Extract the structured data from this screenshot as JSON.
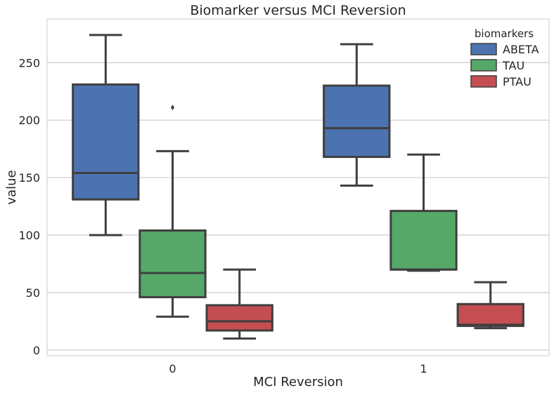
{
  "chart_data": {
    "type": "box",
    "title": "Biomarker versus MCI Reversion",
    "xlabel": "MCI Reversion",
    "ylabel": "value",
    "categories": [
      "0",
      "1"
    ],
    "ylim": [
      -5,
      288
    ],
    "yticks": [
      0,
      50,
      100,
      150,
      200,
      250
    ],
    "grid": "horizontal",
    "legend": {
      "title": "biomarkers",
      "position": "top-right"
    },
    "series": [
      {
        "name": "ABETA",
        "color": "#4c72b0",
        "boxes": [
          {
            "whisker_low": 100,
            "q1": 131,
            "median": 154,
            "q3": 231,
            "whisker_high": 274,
            "outliers": []
          },
          {
            "whisker_low": 143,
            "q1": 168,
            "median": 193,
            "q3": 230,
            "whisker_high": 266,
            "outliers": []
          }
        ]
      },
      {
        "name": "TAU",
        "color": "#55a868",
        "boxes": [
          {
            "whisker_low": 29,
            "q1": 46,
            "median": 67,
            "q3": 104,
            "whisker_high": 173,
            "outliers": [
              211
            ]
          },
          {
            "whisker_low": 69,
            "q1": 70,
            "median": 70,
            "q3": 121,
            "whisker_high": 170,
            "outliers": []
          }
        ]
      },
      {
        "name": "PTAU",
        "color": "#c44e52",
        "boxes": [
          {
            "whisker_low": 10,
            "q1": 17,
            "median": 25,
            "q3": 39,
            "whisker_high": 70,
            "outliers": []
          },
          {
            "whisker_low": 19,
            "q1": 21,
            "median": 22,
            "q3": 40,
            "whisker_high": 59,
            "outliers": []
          }
        ]
      }
    ]
  }
}
